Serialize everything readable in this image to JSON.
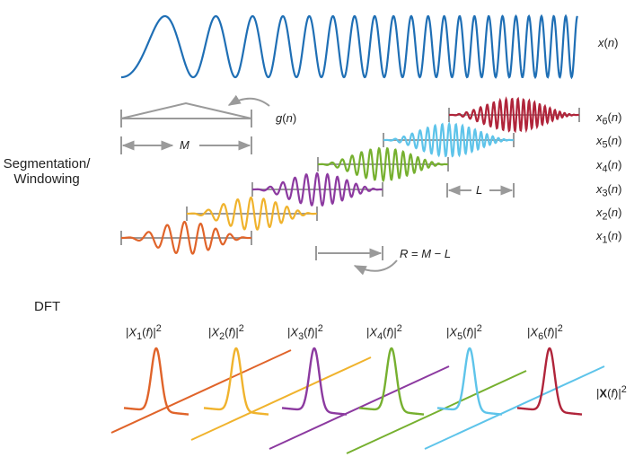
{
  "labels": {
    "segmentation_line1": "Segmentation/",
    "segmentation_line2": "Windowing",
    "dft": "DFT"
  },
  "colors": {
    "signal": "#1f6fb5",
    "window": "#9a9a9a",
    "segments": [
      "#e0642a",
      "#f0b32d",
      "#8c3aa0",
      "#76b02f",
      "#5ec4ea",
      "#b0243a"
    ]
  }
}
